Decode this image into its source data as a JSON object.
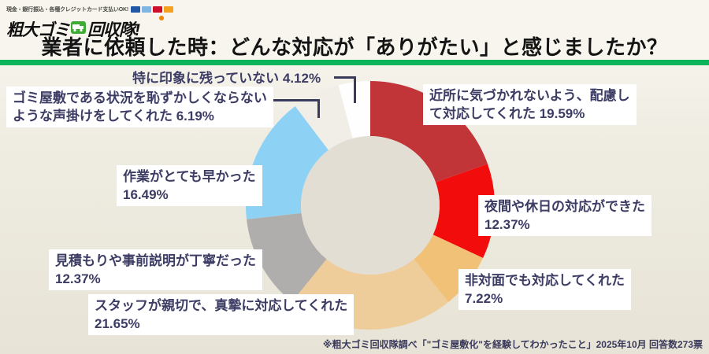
{
  "header": {
    "payment_banner": "現金・銀行振込・各種クレジットカード支払いOK!",
    "logo": {
      "part1": "粗大ゴミ",
      "part2": "回収隊!"
    },
    "title": "業者に依頼した時：どんな対応が「ありがたい」と感じましたか？",
    "accent_green": "#0CB45C"
  },
  "chart_data": {
    "type": "pie",
    "donut": true,
    "title": "業者に依頼した時：どんな対応が「ありがたい」と感じましたか？",
    "start_angle_deg": 0,
    "direction": "clockwise",
    "hole_color": "#E3DED3",
    "slices": [
      {
        "label": "近所に気づかれないよう、配慮して対応してくれた",
        "value": 19.59,
        "color": "#C13438",
        "lines": [
          "近所に気づかれないよう、配慮し",
          "て対応してくれた 19.59%"
        ]
      },
      {
        "label": "夜間や休日の対応ができた",
        "value": 12.37,
        "color": "#F20C0C",
        "lines": [
          "夜間や休日の対応ができた",
          "12.37%"
        ]
      },
      {
        "label": "非対面でも対応してくれた",
        "value": 7.22,
        "color": "#F2C178",
        "lines": [
          "非対面でも対応してくれた",
          "7.22%"
        ]
      },
      {
        "label": "スタッフが親切で、真摯に対応してくれた",
        "value": 21.65,
        "color": "#EFCD9B",
        "lines": [
          "スタッフが親切で、真摯に対応してくれた",
          "21.65%"
        ]
      },
      {
        "label": "見積もりや事前説明が丁寧だった",
        "value": 12.37,
        "color": "#B0AEAC",
        "lines": [
          "見積もりや事前説明が丁寧だった",
          "12.37%"
        ]
      },
      {
        "label": "作業がとても早かった",
        "value": 16.49,
        "color": "#8DD2F5",
        "lines": [
          "作業がとても早かった",
          "16.49%"
        ]
      },
      {
        "label": "ゴミ屋敷である状況を恥ずかしくならないような声掛けをしてくれた",
        "value": 6.19,
        "color": "#F1EEE8",
        "lines": [
          "ゴミ屋敷である状況を恥ずかしくならない",
          "ような声掛けをしてくれた 6.19%"
        ]
      },
      {
        "label": "特に印象に残っていない",
        "value": 4.12,
        "color": "#FEFEFE",
        "lines": [
          "特に印象に残っていない 4.12%"
        ]
      }
    ]
  },
  "footer": {
    "source_note": "※粗大ゴミ回収隊調べ「\"ゴミ屋敷化\"を経験してわかったこと」2025年10月 回答数273票"
  }
}
